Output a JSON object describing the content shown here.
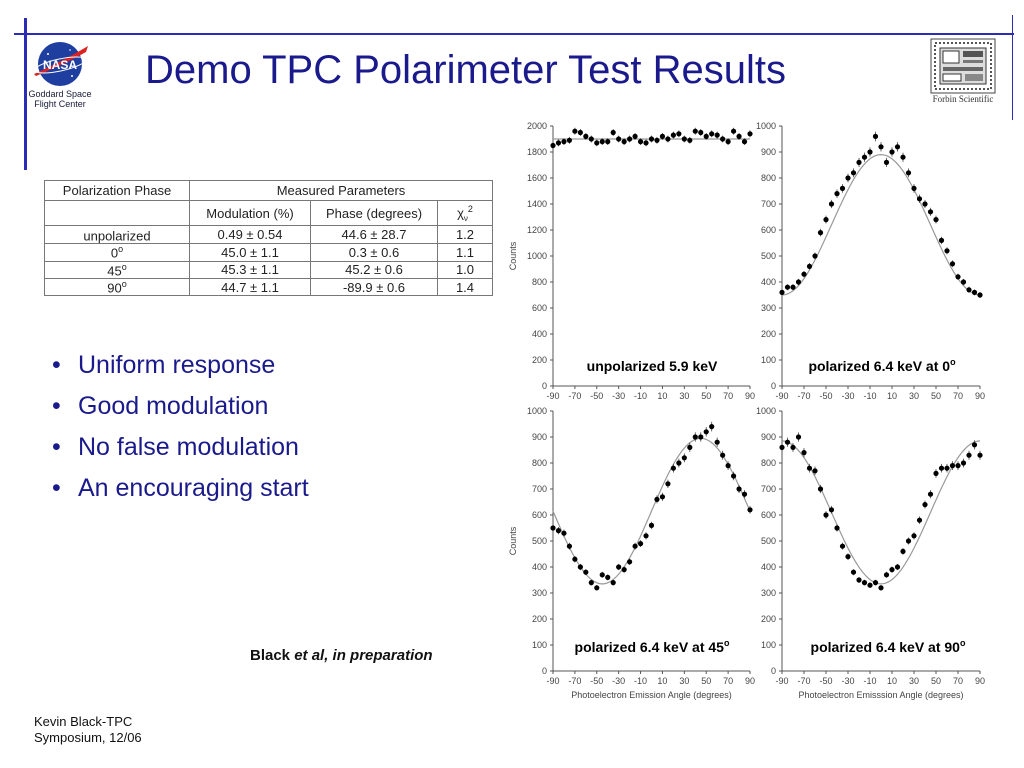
{
  "header": {
    "title": "Demo TPC Polarimeter Test Results",
    "nasa_caption": [
      "Goddard Space",
      "Flight Center"
    ],
    "nasa_logo_text": "NASA",
    "forbin_caption": "Forbin Scientific"
  },
  "table": {
    "headers": {
      "phase": "Polarization Phase",
      "measured": "Measured Parameters"
    },
    "subheaders": {
      "modulation": "Modulation (%)",
      "phase": "Phase (degrees)",
      "chi": "χ",
      "chi_sub": "ν",
      "chi_sup": "2"
    },
    "rows": [
      {
        "label": "unpolarized",
        "sup": "",
        "modulation": "0.49 ± 0.54",
        "phase": "44.6 ± 28.7",
        "chi2": "1.2"
      },
      {
        "label": "0",
        "sup": "o",
        "modulation": "45.0 ± 1.1",
        "phase": "0.3 ± 0.6",
        "chi2": "1.1"
      },
      {
        "label": "45",
        "sup": "o",
        "modulation": "45.3 ± 1.1",
        "phase": "45.2 ± 0.6",
        "chi2": "1.0"
      },
      {
        "label": "90",
        "sup": "o",
        "modulation": "44.7 ± 1.1",
        "phase": "-89.9 ± 0.6",
        "chi2": "1.4"
      }
    ]
  },
  "bullets": [
    "Uniform response",
    "Good modulation",
    "No false modulation",
    "An encouraging start"
  ],
  "citation": {
    "name": "Black",
    "rest": "et al, in preparation"
  },
  "footer": {
    "line1": "Kevin Black-TPC",
    "line2": "Symposium, 12/06"
  },
  "colors": {
    "title": "#1a1a8c",
    "frame": "#2b2bb5",
    "fit_line": "#999999",
    "points": "#000000"
  },
  "chart_data": [
    {
      "type": "scatter",
      "label": "unpolarized 5.9 keV",
      "label_sup": "",
      "ylabel": "Counts",
      "xlabel": "",
      "xlim": [
        -90,
        90
      ],
      "ylim": [
        0,
        2000
      ],
      "xticks": [
        -90,
        -70,
        -50,
        -30,
        -10,
        10,
        30,
        50,
        70,
        90
      ],
      "yticks": [
        0,
        200,
        400,
        600,
        800,
        1000,
        1200,
        1400,
        1600,
        1800,
        2000
      ],
      "fit": {
        "mean": 1900,
        "amplitude": 0,
        "phase": 0
      },
      "x": [
        -90,
        -85,
        -80,
        -75,
        -70,
        -65,
        -60,
        -55,
        -50,
        -45,
        -40,
        -35,
        -30,
        -25,
        -20,
        -15,
        -10,
        -5,
        0,
        5,
        10,
        15,
        20,
        25,
        30,
        35,
        40,
        45,
        50,
        55,
        60,
        65,
        70,
        75,
        80,
        85,
        90
      ],
      "y": [
        1850,
        1870,
        1880,
        1890,
        1960,
        1950,
        1920,
        1900,
        1870,
        1880,
        1880,
        1950,
        1900,
        1880,
        1900,
        1920,
        1880,
        1870,
        1900,
        1890,
        1920,
        1900,
        1930,
        1940,
        1900,
        1890,
        1960,
        1950,
        1920,
        1940,
        1930,
        1900,
        1880,
        1960,
        1920,
        1880,
        1940
      ]
    },
    {
      "type": "scatter",
      "label": "polarized 6.4 keV at 0",
      "label_sup": "o",
      "ylabel": "",
      "xlabel": "",
      "xlim": [
        -90,
        90
      ],
      "ylim": [
        0,
        1000
      ],
      "xticks": [
        -90,
        -70,
        -50,
        -30,
        -10,
        10,
        30,
        50,
        70,
        90
      ],
      "yticks": [
        0,
        100,
        200,
        300,
        400,
        500,
        600,
        700,
        800,
        900,
        1000
      ],
      "fit": {
        "mean": 620,
        "amplitude": 270,
        "phase": 0
      },
      "x": [
        -90,
        -85,
        -80,
        -75,
        -70,
        -65,
        -60,
        -55,
        -50,
        -45,
        -40,
        -35,
        -30,
        -25,
        -20,
        -15,
        -10,
        -5,
        0,
        5,
        10,
        15,
        20,
        25,
        30,
        35,
        40,
        45,
        50,
        55,
        60,
        65,
        70,
        75,
        80,
        85,
        90
      ],
      "y": [
        360,
        380,
        380,
        400,
        430,
        460,
        500,
        590,
        640,
        700,
        740,
        760,
        800,
        820,
        860,
        880,
        900,
        960,
        920,
        860,
        900,
        920,
        880,
        820,
        760,
        720,
        700,
        670,
        640,
        560,
        520,
        470,
        420,
        400,
        370,
        360,
        350
      ]
    },
    {
      "type": "scatter",
      "label": "polarized 6.4 keV at 45",
      "label_sup": "o",
      "ylabel": "Counts",
      "xlabel": "Photoelectron Emission Angle (degrees)",
      "xlim": [
        -90,
        90
      ],
      "ylim": [
        0,
        1000
      ],
      "xticks": [
        -90,
        -70,
        -50,
        -30,
        -10,
        10,
        30,
        50,
        70,
        90
      ],
      "yticks": [
        0,
        100,
        200,
        300,
        400,
        500,
        600,
        700,
        800,
        900,
        1000
      ],
      "fit": {
        "mean": 615,
        "amplitude": 280,
        "phase": 45
      },
      "x": [
        -90,
        -85,
        -80,
        -75,
        -70,
        -65,
        -60,
        -55,
        -50,
        -45,
        -40,
        -35,
        -30,
        -25,
        -20,
        -15,
        -10,
        -5,
        0,
        5,
        10,
        15,
        20,
        25,
        30,
        35,
        40,
        45,
        50,
        55,
        60,
        65,
        70,
        75,
        80,
        85,
        90
      ],
      "y": [
        550,
        540,
        530,
        480,
        430,
        400,
        380,
        340,
        320,
        370,
        360,
        340,
        400,
        390,
        420,
        480,
        490,
        520,
        560,
        660,
        670,
        720,
        780,
        800,
        820,
        860,
        900,
        900,
        920,
        940,
        880,
        830,
        790,
        750,
        700,
        680,
        620
      ]
    },
    {
      "type": "scatter",
      "label": "polarized 6.4 keV at 90",
      "label_sup": "o",
      "ylabel": "",
      "xlabel": "Photoelectron Emisssion Angle (degrees)",
      "xlim": [
        -90,
        90
      ],
      "ylim": [
        0,
        1000
      ],
      "xticks": [
        -90,
        -70,
        -50,
        -30,
        -10,
        10,
        30,
        50,
        70,
        90
      ],
      "yticks": [
        0,
        100,
        200,
        300,
        400,
        500,
        600,
        700,
        800,
        900,
        1000
      ],
      "fit": {
        "mean": 610,
        "amplitude": 275,
        "phase": 90
      },
      "x": [
        -90,
        -85,
        -80,
        -75,
        -70,
        -65,
        -60,
        -55,
        -50,
        -45,
        -40,
        -35,
        -30,
        -25,
        -20,
        -15,
        -10,
        -5,
        0,
        5,
        10,
        15,
        20,
        25,
        30,
        35,
        40,
        45,
        50,
        55,
        60,
        65,
        70,
        75,
        80,
        85,
        90
      ],
      "y": [
        860,
        880,
        860,
        900,
        840,
        780,
        770,
        700,
        600,
        620,
        550,
        480,
        440,
        380,
        350,
        340,
        330,
        340,
        320,
        370,
        390,
        400,
        460,
        500,
        520,
        580,
        640,
        680,
        760,
        780,
        780,
        790,
        790,
        800,
        830,
        870,
        830
      ]
    }
  ]
}
